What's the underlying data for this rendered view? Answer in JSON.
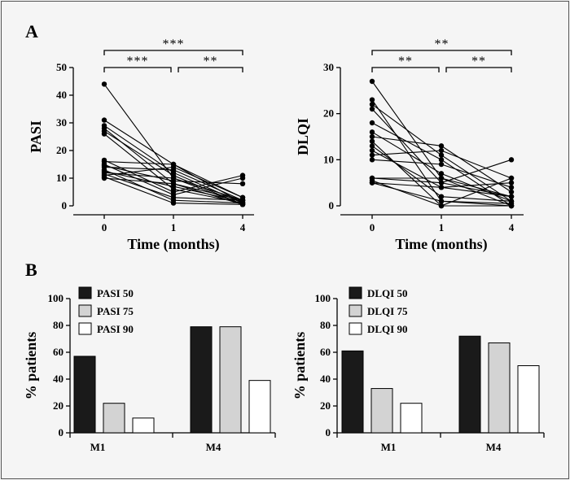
{
  "panels": {
    "a": "A",
    "b": "B"
  },
  "chart_data": [
    {
      "type": "line",
      "panel": "A",
      "xlabel": "Time (months)",
      "ylabel": "PASI",
      "categories": [
        "0",
        "1",
        "4"
      ],
      "ylim": [
        0,
        50
      ],
      "yticks": [
        "0",
        "10",
        "20",
        "30",
        "40",
        "50"
      ],
      "significance": [
        {
          "from": "0",
          "to": "4",
          "label": "***"
        },
        {
          "from": "0",
          "to": "1",
          "label": "***"
        },
        {
          "from": "1",
          "to": "4",
          "label": "**"
        }
      ],
      "series": [
        {
          "values": [
            44,
            10,
            2
          ]
        },
        {
          "values": [
            31,
            15,
            3
          ]
        },
        {
          "values": [
            29,
            12,
            1
          ]
        },
        {
          "values": [
            28,
            8,
            2
          ]
        },
        {
          "values": [
            27,
            11,
            0.5
          ]
        },
        {
          "values": [
            26,
            6,
            1
          ]
        },
        {
          "values": [
            16.5,
            5,
            11
          ]
        },
        {
          "values": [
            16,
            15,
            1
          ]
        },
        {
          "values": [
            15,
            4,
            10
          ]
        },
        {
          "values": [
            14.5,
            9,
            8
          ]
        },
        {
          "values": [
            14,
            13,
            2
          ]
        },
        {
          "values": [
            13,
            2,
            1
          ]
        },
        {
          "values": [
            12.5,
            7,
            1.5
          ]
        },
        {
          "values": [
            12,
            10,
            0.5
          ]
        },
        {
          "values": [
            11.5,
            3,
            2
          ]
        },
        {
          "values": [
            11,
            14,
            3
          ]
        },
        {
          "values": [
            10.5,
            1,
            0.5
          ]
        },
        {
          "values": [
            10,
            8,
            0.5
          ]
        }
      ]
    },
    {
      "type": "line",
      "panel": "A",
      "xlabel": "Time (months)",
      "ylabel": "DLQI",
      "categories": [
        "0",
        "1",
        "4"
      ],
      "ylim": [
        0,
        30
      ],
      "yticks": [
        "0",
        "10",
        "20",
        "30"
      ],
      "significance": [
        {
          "from": "0",
          "to": "4",
          "label": "**"
        },
        {
          "from": "0",
          "to": "1",
          "label": "**"
        },
        {
          "from": "1",
          "to": "4",
          "label": "**"
        }
      ],
      "series": [
        {
          "values": [
            27,
            6,
            2
          ]
        },
        {
          "values": [
            23,
            1,
            0
          ]
        },
        {
          "values": [
            22,
            11,
            1
          ]
        },
        {
          "values": [
            21,
            5,
            2
          ]
        },
        {
          "values": [
            18,
            10,
            0
          ]
        },
        {
          "values": [
            16,
            7,
            1
          ]
        },
        {
          "values": [
            15,
            13,
            3
          ]
        },
        {
          "values": [
            14,
            0,
            0
          ]
        },
        {
          "values": [
            13,
            2,
            1
          ]
        },
        {
          "values": [
            12,
            4,
            5
          ]
        },
        {
          "values": [
            11,
            12,
            6
          ]
        },
        {
          "values": [
            10,
            9,
            4
          ]
        },
        {
          "values": [
            6,
            5,
            10
          ]
        },
        {
          "values": [
            6,
            6,
            0
          ]
        },
        {
          "values": [
            5,
            4,
            2
          ]
        },
        {
          "values": [
            5.5,
            0,
            6
          ]
        },
        {
          "values": [
            5,
            1,
            0.5
          ]
        }
      ]
    },
    {
      "type": "bar",
      "panel": "B",
      "ylabel": "% patients",
      "categories": [
        "M1",
        "M4"
      ],
      "ylim": [
        0,
        100
      ],
      "yticks": [
        "0",
        "20",
        "40",
        "60",
        "80",
        "100"
      ],
      "legend_position": "top-left",
      "series": [
        {
          "name": "PASI 50",
          "color": "#1a1a1a",
          "values": [
            57,
            79
          ]
        },
        {
          "name": "PASI 75",
          "color": "#d3d3d3",
          "values": [
            22,
            79
          ]
        },
        {
          "name": "PASI 90",
          "color": "#ffffff",
          "values": [
            11,
            39
          ]
        }
      ]
    },
    {
      "type": "bar",
      "panel": "B",
      "ylabel": "% patients",
      "categories": [
        "M1",
        "M4"
      ],
      "ylim": [
        0,
        100
      ],
      "yticks": [
        "0",
        "20",
        "40",
        "60",
        "80",
        "100"
      ],
      "legend_position": "top-left",
      "series": [
        {
          "name": "DLQI 50",
          "color": "#1a1a1a",
          "values": [
            61,
            72
          ]
        },
        {
          "name": "DLQI 75",
          "color": "#d3d3d3",
          "values": [
            33,
            67
          ]
        },
        {
          "name": "DLQI 90",
          "color": "#ffffff",
          "values": [
            22,
            50
          ]
        }
      ]
    }
  ]
}
